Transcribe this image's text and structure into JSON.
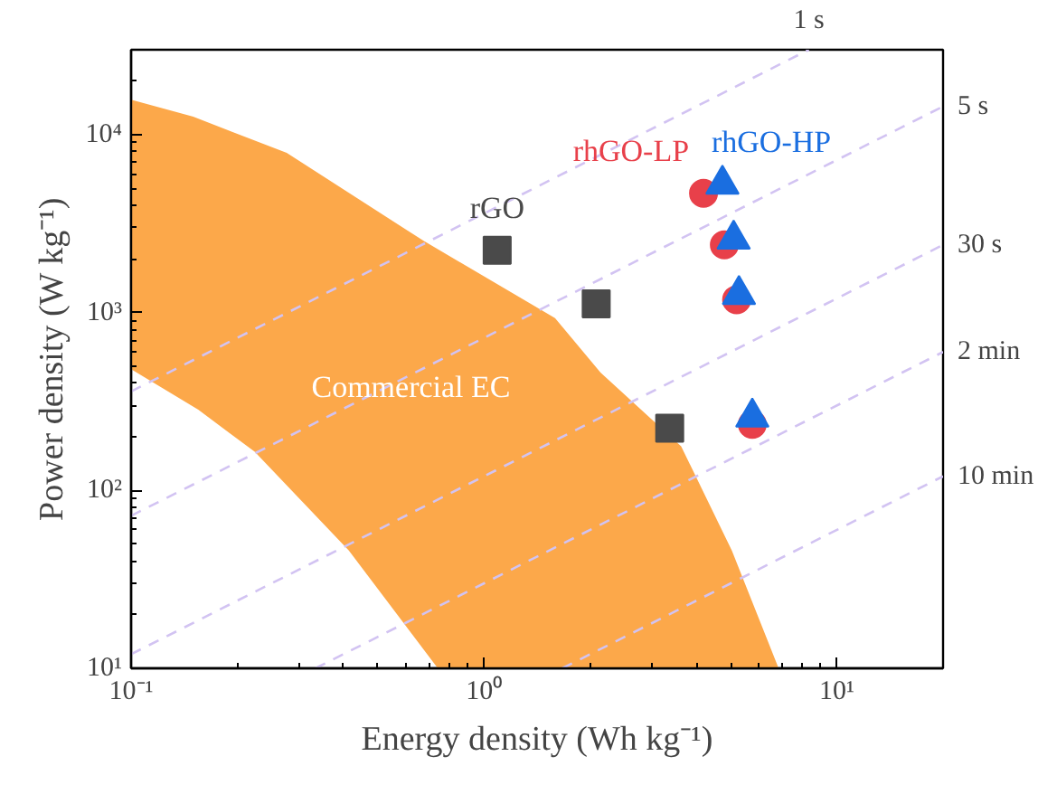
{
  "chart_data": {
    "type": "scatter",
    "xlabel": "Energy density (Wh kg⁻¹)",
    "ylabel": "Power density (W kg⁻¹)",
    "log": "xy",
    "grid": false,
    "xlim": [
      0.1,
      20
    ],
    "ylim": [
      10,
      30000
    ],
    "xticks": [
      {
        "value": 0.1,
        "label": "10⁻¹"
      },
      {
        "value": 1,
        "label": "10⁰"
      },
      {
        "value": 10,
        "label": "10¹"
      }
    ],
    "yticks": [
      {
        "value": 10,
        "label": "10¹"
      },
      {
        "value": 100,
        "label": "10²"
      },
      {
        "value": 1000,
        "label": "10³"
      },
      {
        "value": 10000,
        "label": "10⁴"
      }
    ],
    "annotations": [
      "1 s",
      "5 s",
      "30 s",
      "2 min",
      "10 min"
    ],
    "series": [
      {
        "type": "area",
        "name": "Commercial EC",
        "color": "#fca84a",
        "x": [
          0.1,
          0.15,
          0.276,
          0.676,
          1.59,
          2.14,
          3.62,
          5.04,
          6.84,
          0.74,
          0.414,
          0.224,
          0.155,
          0.1
        ],
        "values": [
          15700,
          12600,
          7900,
          2520,
          930,
          460,
          177,
          46,
          10,
          10,
          46,
          165,
          284,
          480
        ]
      },
      {
        "type": "line",
        "color": "#d2c3f2",
        "line_style": "dashed",
        "x": [
          0.1,
          8.33
        ],
        "values": [
          360,
          30000
        ]
      },
      {
        "type": "line",
        "color": "#d2c3f2",
        "line_style": "dashed",
        "x": [
          0.1,
          20
        ],
        "values": [
          72,
          14400
        ]
      },
      {
        "type": "line",
        "color": "#d2c3f2",
        "line_style": "dashed",
        "x": [
          0.1,
          20
        ],
        "values": [
          12,
          2400
        ]
      },
      {
        "type": "line",
        "color": "#d2c3f2",
        "line_style": "dashed",
        "x": [
          0.333,
          20
        ],
        "values": [
          10,
          600
        ]
      },
      {
        "type": "line",
        "color": "#d2c3f2",
        "line_style": "dashed",
        "x": [
          1.667,
          20
        ],
        "values": [
          10,
          120
        ]
      },
      {
        "name": "rGO",
        "color": "#4a4a4a",
        "marker": "square",
        "x": [
          1.09,
          2.08,
          3.36
        ],
        "values": [
          2240,
          1120,
          224
        ]
      },
      {
        "name": "rhGO-LP",
        "color": "#e8404a",
        "marker": "circle",
        "x": [
          4.19,
          4.8,
          5.2,
          5.76
        ],
        "values": [
          4680,
          2400,
          1180,
          235
        ]
      },
      {
        "name": "rhGO-HP",
        "color": "#1a6ee0",
        "marker": "triangle",
        "x": [
          4.74,
          5.1,
          5.28,
          5.76
        ],
        "values": [
          5260,
          2580,
          1260,
          258
        ]
      }
    ]
  }
}
